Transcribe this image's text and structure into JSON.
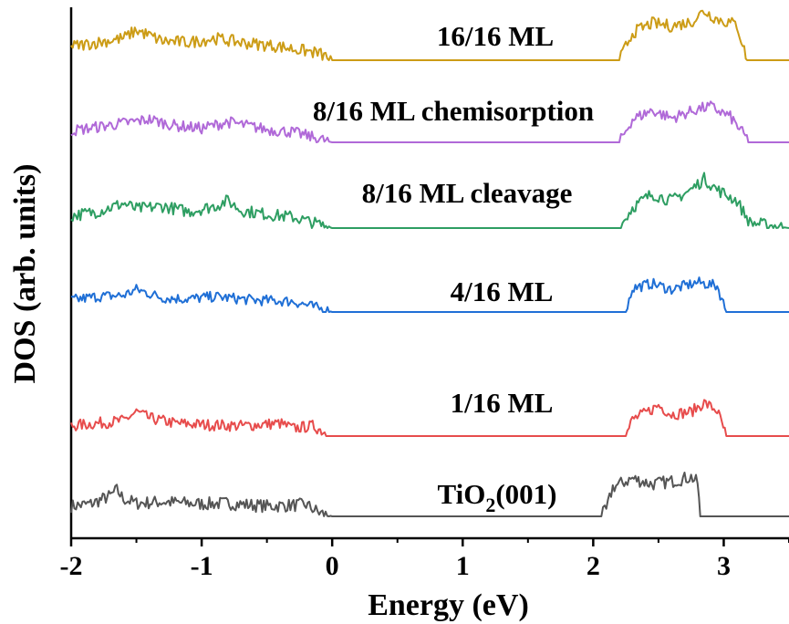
{
  "chart_data": {
    "type": "line",
    "xlabel": "Energy (eV)",
    "ylabel": "DOS (arb. units)",
    "xlim": [
      -2,
      3.5
    ],
    "xticks": [
      -2,
      -1,
      0,
      1,
      2,
      3
    ],
    "xtick_labels": [
      "-2",
      "-1",
      "0",
      "1",
      "2",
      "3"
    ],
    "y_ticks_visible": false,
    "grid": false,
    "legend": "none",
    "series_layout": "stacked with vertical offsets",
    "series": [
      {
        "name": "TiO2(001)",
        "label_main": "TiO",
        "label_sub": "2",
        "label_tail": "(001)",
        "color": "#555555",
        "offset": 0,
        "points": [
          [
            -2.0,
            0.7
          ],
          [
            -1.85,
            0.85
          ],
          [
            -1.7,
            1.4
          ],
          [
            -1.65,
            1.8
          ],
          [
            -1.6,
            1.2
          ],
          [
            -1.5,
            0.9
          ],
          [
            -1.3,
            1.0
          ],
          [
            -1.0,
            0.85
          ],
          [
            -0.8,
            0.9
          ],
          [
            -0.5,
            0.7
          ],
          [
            -0.2,
            0.8
          ],
          [
            -0.1,
            0.25
          ],
          [
            0.0,
            0.0
          ],
          [
            1.0,
            0.0
          ],
          [
            2.05,
            0.0
          ],
          [
            2.1,
            0.4
          ],
          [
            2.15,
            2.0
          ],
          [
            2.3,
            2.6
          ],
          [
            2.45,
            2.2
          ],
          [
            2.6,
            2.4
          ],
          [
            2.75,
            2.7
          ],
          [
            2.8,
            2.3
          ],
          [
            2.82,
            0.0
          ],
          [
            3.5,
            0.0
          ]
        ]
      },
      {
        "name": "1/16 ML",
        "color": "#e74c4c",
        "offset": 1,
        "points": [
          [
            -2.0,
            0.8
          ],
          [
            -1.8,
            1.0
          ],
          [
            -1.6,
            1.2
          ],
          [
            -1.5,
            1.9
          ],
          [
            -1.4,
            1.4
          ],
          [
            -1.2,
            1.0
          ],
          [
            -1.0,
            0.9
          ],
          [
            -0.7,
            0.8
          ],
          [
            -0.4,
            1.0
          ],
          [
            -0.3,
            0.6
          ],
          [
            -0.15,
            0.8
          ],
          [
            0.0,
            0.0
          ],
          [
            1.0,
            0.0
          ],
          [
            2.25,
            0.0
          ],
          [
            2.3,
            1.3
          ],
          [
            2.4,
            1.8
          ],
          [
            2.5,
            2.4
          ],
          [
            2.6,
            1.7
          ],
          [
            2.75,
            1.9
          ],
          [
            2.85,
            2.6
          ],
          [
            2.95,
            2.0
          ],
          [
            3.02,
            0.0
          ],
          [
            3.5,
            0.0
          ]
        ]
      },
      {
        "name": "4/16 ML",
        "color": "#1f6fd6",
        "offset": 2,
        "points": [
          [
            -2.0,
            1.0
          ],
          [
            -1.8,
            1.3
          ],
          [
            -1.6,
            1.4
          ],
          [
            -1.5,
            1.9
          ],
          [
            -1.3,
            1.2
          ],
          [
            -1.1,
            1.1
          ],
          [
            -0.9,
            1.3
          ],
          [
            -0.6,
            1.0
          ],
          [
            -0.3,
            0.9
          ],
          [
            0.0,
            0.0
          ],
          [
            1.0,
            0.0
          ],
          [
            2.25,
            0.0
          ],
          [
            2.3,
            2.0
          ],
          [
            2.45,
            2.4
          ],
          [
            2.6,
            1.9
          ],
          [
            2.8,
            2.5
          ],
          [
            2.95,
            2.2
          ],
          [
            3.02,
            0.0
          ],
          [
            3.5,
            0.0
          ]
        ]
      },
      {
        "name": "8/16 ML cleavage",
        "color": "#2e9e62",
        "offset": 3,
        "points": [
          [
            -2.0,
            0.9
          ],
          [
            -1.8,
            1.2
          ],
          [
            -1.6,
            1.8
          ],
          [
            -1.5,
            1.4
          ],
          [
            -1.3,
            1.6
          ],
          [
            -1.1,
            1.2
          ],
          [
            -0.9,
            1.6
          ],
          [
            -0.8,
            2.0
          ],
          [
            -0.7,
            1.3
          ],
          [
            -0.5,
            1.0
          ],
          [
            -0.3,
            0.8
          ],
          [
            0.0,
            0.0
          ],
          [
            1.0,
            0.0
          ],
          [
            2.2,
            0.0
          ],
          [
            2.3,
            1.5
          ],
          [
            2.45,
            2.5
          ],
          [
            2.6,
            2.0
          ],
          [
            2.75,
            2.8
          ],
          [
            2.85,
            3.6
          ],
          [
            2.95,
            2.8
          ],
          [
            3.1,
            2.0
          ],
          [
            3.2,
            0.4
          ],
          [
            3.5,
            0.0
          ]
        ]
      },
      {
        "name": "8/16 ML chemisorption",
        "color": "#b069d8",
        "offset": 4,
        "points": [
          [
            -2.0,
            0.9
          ],
          [
            -1.8,
            1.2
          ],
          [
            -1.6,
            1.5
          ],
          [
            -1.4,
            1.8
          ],
          [
            -1.2,
            1.3
          ],
          [
            -1.0,
            1.1
          ],
          [
            -0.8,
            1.6
          ],
          [
            -0.5,
            1.0
          ],
          [
            -0.3,
            0.8
          ],
          [
            0.0,
            0.0
          ],
          [
            1.0,
            0.0
          ],
          [
            2.2,
            0.0
          ],
          [
            2.3,
            1.8
          ],
          [
            2.45,
            2.5
          ],
          [
            2.6,
            1.9
          ],
          [
            2.8,
            2.6
          ],
          [
            2.9,
            2.8
          ],
          [
            3.05,
            2.0
          ],
          [
            3.2,
            0.0
          ],
          [
            3.5,
            0.0
          ]
        ]
      },
      {
        "name": "16/16 ML",
        "color": "#cc9c16",
        "offset": 5,
        "points": [
          [
            -2.0,
            1.0
          ],
          [
            -1.8,
            1.3
          ],
          [
            -1.6,
            1.6
          ],
          [
            -1.5,
            2.2
          ],
          [
            -1.3,
            1.4
          ],
          [
            -1.1,
            1.3
          ],
          [
            -0.9,
            1.6
          ],
          [
            -0.7,
            1.3
          ],
          [
            -0.4,
            1.0
          ],
          [
            -0.1,
            0.5
          ],
          [
            0.0,
            0.0
          ],
          [
            1.0,
            0.0
          ],
          [
            2.2,
            0.0
          ],
          [
            2.3,
            2.0
          ],
          [
            2.45,
            2.7
          ],
          [
            2.6,
            2.5
          ],
          [
            2.75,
            2.8
          ],
          [
            2.85,
            3.6
          ],
          [
            2.95,
            3.0
          ],
          [
            3.1,
            2.6
          ],
          [
            3.18,
            0.0
          ],
          [
            3.5,
            0.0
          ]
        ]
      }
    ]
  }
}
